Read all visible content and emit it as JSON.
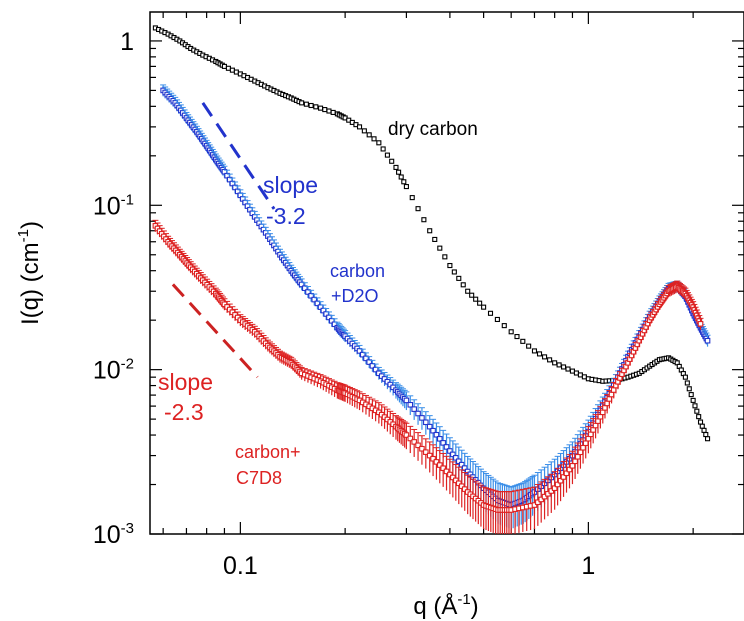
{
  "chart_data": {
    "type": "scatter",
    "xscale": "log",
    "yscale": "log",
    "xlim": [
      0.055,
      2.8
    ],
    "ylim": [
      0.001,
      1.5
    ],
    "xticks": [
      {
        "v": 0.1,
        "label": "0.1"
      },
      {
        "v": 1,
        "label": "1"
      }
    ],
    "yticks": [
      {
        "v": 1,
        "base": "1",
        "exp": ""
      },
      {
        "v": 0.1,
        "base": "10",
        "exp": "-1"
      },
      {
        "v": 0.01,
        "base": "10",
        "exp": "-2"
      },
      {
        "v": 0.001,
        "base": "10",
        "exp": "-3"
      }
    ],
    "xlabel": {
      "main": "q  (Å",
      "sup": "-1",
      "end": ")"
    },
    "ylabel": {
      "main": "I(q)  (cm",
      "sup": "-1",
      "end": ")"
    },
    "grid": false,
    "series": [
      {
        "name": "dry carbon",
        "color": "#000000",
        "marker": "open-square",
        "x": [
          0.057,
          0.062,
          0.067,
          0.072,
          0.078,
          0.085,
          0.09,
          0.1,
          0.11,
          0.12,
          0.13,
          0.14,
          0.15,
          0.17,
          0.19,
          0.2,
          0.22,
          0.25,
          0.28,
          0.3,
          0.35,
          0.4,
          0.45,
          0.5,
          0.6,
          0.7,
          0.8,
          0.9,
          1.0,
          1.1,
          1.2,
          1.3,
          1.4,
          1.5,
          1.6,
          1.7,
          1.8,
          1.9,
          2.0,
          2.1,
          2.2
        ],
        "y": [
          1.2,
          1.1,
          1.0,
          0.9,
          0.82,
          0.75,
          0.7,
          0.63,
          0.57,
          0.52,
          0.48,
          0.45,
          0.42,
          0.39,
          0.36,
          0.34,
          0.3,
          0.24,
          0.17,
          0.13,
          0.07,
          0.043,
          0.03,
          0.024,
          0.017,
          0.013,
          0.011,
          0.0098,
          0.0088,
          0.0085,
          0.0086,
          0.009,
          0.0095,
          0.0105,
          0.0115,
          0.0118,
          0.011,
          0.009,
          0.0065,
          0.0048,
          0.0038
        ]
      },
      {
        "name": "carbon +D2O",
        "color": "#2233cc",
        "errcolor": "#3a8ee8",
        "marker": "open-square",
        "x": [
          0.06,
          0.065,
          0.07,
          0.075,
          0.08,
          0.085,
          0.09,
          0.1,
          0.11,
          0.12,
          0.13,
          0.14,
          0.15,
          0.17,
          0.19,
          0.2,
          0.22,
          0.25,
          0.28,
          0.3,
          0.35,
          0.4,
          0.45,
          0.5,
          0.55,
          0.6,
          0.65,
          0.7,
          0.8,
          0.9,
          1.0,
          1.1,
          1.2,
          1.3,
          1.4,
          1.5,
          1.6,
          1.7,
          1.8,
          1.9,
          2.0,
          2.1,
          2.2
        ],
        "y": [
          0.5,
          0.42,
          0.34,
          0.28,
          0.23,
          0.19,
          0.16,
          0.115,
          0.085,
          0.065,
          0.05,
          0.04,
          0.033,
          0.024,
          0.018,
          0.016,
          0.013,
          0.0095,
          0.0075,
          0.0065,
          0.0045,
          0.0032,
          0.0024,
          0.0019,
          0.0016,
          0.0015,
          0.0016,
          0.0018,
          0.0023,
          0.003,
          0.0042,
          0.006,
          0.0085,
          0.012,
          0.016,
          0.021,
          0.026,
          0.031,
          0.032,
          0.028,
          0.022,
          0.018,
          0.015
        ]
      },
      {
        "name": "carbon+ C7D8",
        "color": "#dd2222",
        "errcolor": "#dd2222",
        "marker": "open-square",
        "x": [
          0.057,
          0.062,
          0.067,
          0.072,
          0.078,
          0.085,
          0.09,
          0.1,
          0.11,
          0.12,
          0.13,
          0.14,
          0.15,
          0.17,
          0.19,
          0.2,
          0.22,
          0.25,
          0.28,
          0.3,
          0.35,
          0.4,
          0.45,
          0.5,
          0.55,
          0.6,
          0.7,
          0.8,
          0.9,
          1.0,
          1.1,
          1.2,
          1.3,
          1.4,
          1.5,
          1.6,
          1.7,
          1.8,
          1.9,
          2.0,
          2.1
        ],
        "y": [
          0.075,
          0.06,
          0.05,
          0.042,
          0.035,
          0.029,
          0.025,
          0.02,
          0.017,
          0.014,
          0.012,
          0.011,
          0.0095,
          0.0085,
          0.0075,
          0.0072,
          0.0065,
          0.0055,
          0.0045,
          0.004,
          0.003,
          0.0023,
          0.0018,
          0.0015,
          0.0014,
          0.0014,
          0.0015,
          0.0019,
          0.0026,
          0.0038,
          0.0055,
          0.008,
          0.011,
          0.015,
          0.02,
          0.025,
          0.03,
          0.032,
          0.029,
          0.024,
          0.019
        ]
      }
    ],
    "slope_lines": [
      {
        "color": "#2233cc",
        "x": [
          0.078,
          0.125
        ],
        "y": [
          0.42,
          0.095
        ]
      },
      {
        "color": "#cc2222",
        "x": [
          0.064,
          0.112
        ],
        "y": [
          0.033,
          0.009
        ]
      }
    ],
    "annotations": [
      {
        "id": "dry",
        "text": "dry carbon",
        "color": "#000000"
      },
      {
        "id": "slope-blue-1",
        "text": "slope",
        "color": "#2233cc"
      },
      {
        "id": "slope-blue-2",
        "text": "-3.2",
        "color": "#2233cc"
      },
      {
        "id": "d2o-1",
        "text": "carbon",
        "color": "#2233cc"
      },
      {
        "id": "d2o-2",
        "text": "+D2O",
        "color": "#2233cc"
      },
      {
        "id": "slope-red-1",
        "text": "slope",
        "color": "#dd2222"
      },
      {
        "id": "slope-red-2",
        "text": "-2.3",
        "color": "#dd2222"
      },
      {
        "id": "c7d8-1",
        "text": "carbon+",
        "color": "#dd2222"
      },
      {
        "id": "c7d8-2",
        "text": "C7D8",
        "color": "#dd2222"
      }
    ]
  }
}
